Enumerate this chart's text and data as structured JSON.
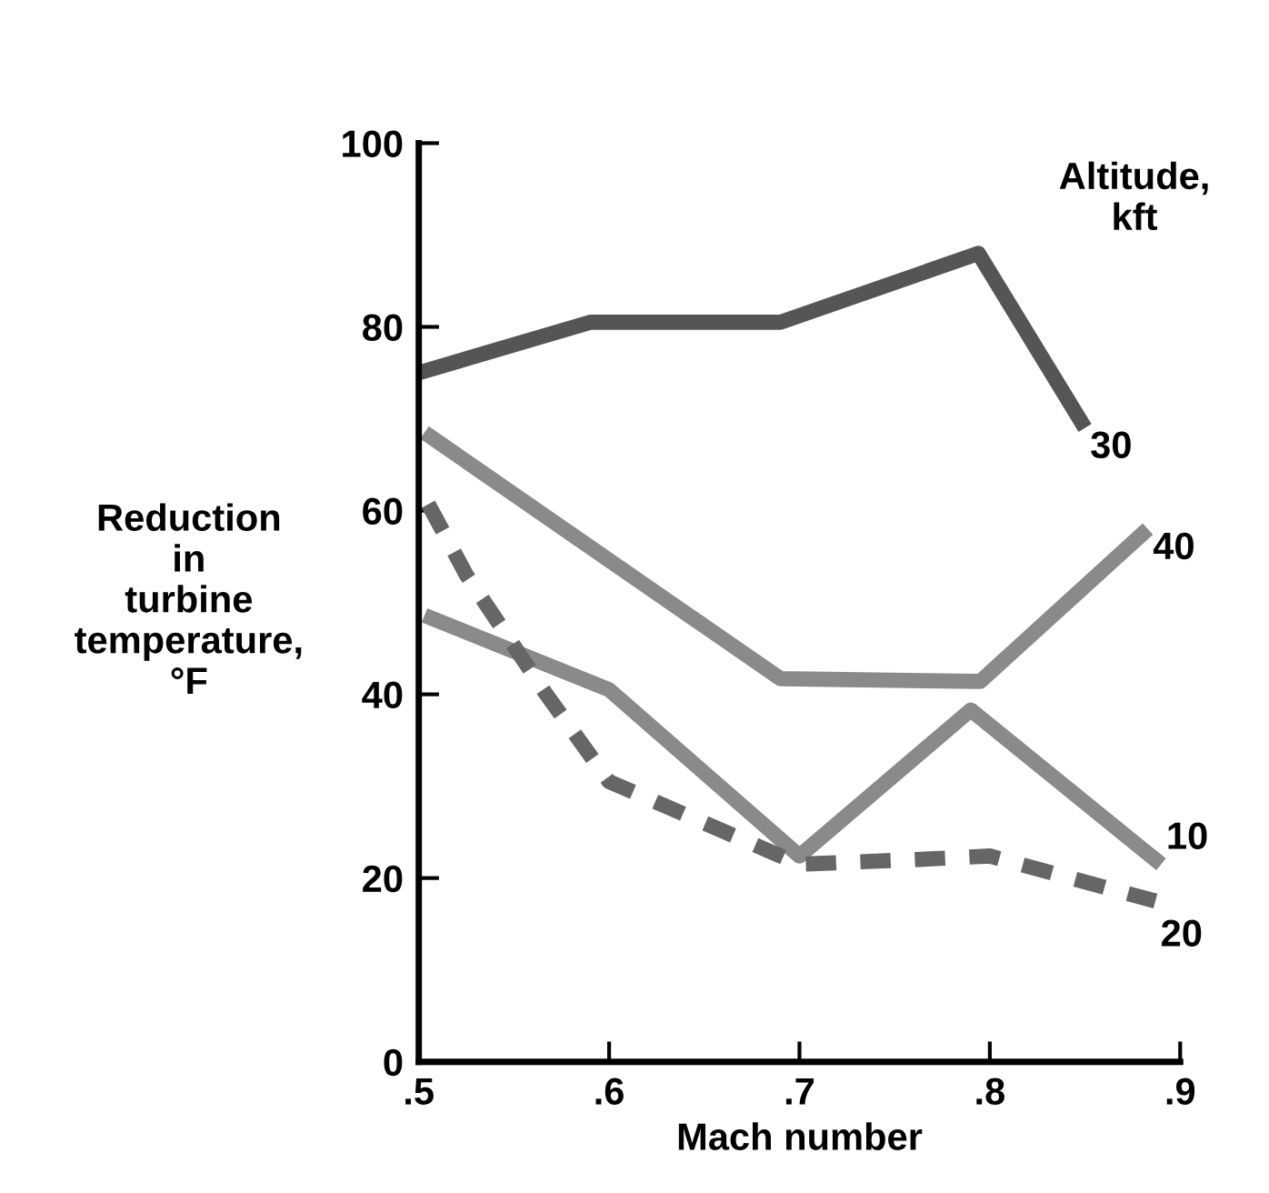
{
  "chart_data": {
    "type": "line",
    "xlabel": "Mach number",
    "ylabel": "Reduction\nin\nturbine\ntemperature,\n°F",
    "legend_title": "Altitude,\nkft",
    "xlim": [
      0.5,
      0.9
    ],
    "ylim": [
      0,
      100
    ],
    "xticks": [
      {
        "value": 0.5,
        "label": ".5"
      },
      {
        "value": 0.6,
        "label": ".6"
      },
      {
        "value": 0.7,
        "label": ".7"
      },
      {
        "value": 0.8,
        "label": ".8"
      },
      {
        "value": 0.9,
        "label": ".9"
      }
    ],
    "yticks": [
      0,
      20,
      40,
      60,
      80,
      100
    ],
    "grid": false,
    "legend": false,
    "marker": "none",
    "series": [
      {
        "name": "30",
        "color": "#555555",
        "line_style": "solid",
        "x": [
          0.5,
          0.59,
          0.69,
          0.794,
          0.85
        ],
        "values": [
          75,
          80.5,
          80.5,
          88,
          69
        ]
      },
      {
        "name": "40",
        "color": "#8a8a8a",
        "line_style": "solid",
        "x": [
          0.503,
          0.69,
          0.795,
          0.883
        ],
        "values": [
          68.5,
          41.7,
          41.4,
          58
        ]
      },
      {
        "name": "10",
        "color": "#8a8a8a",
        "line_style": "solid",
        "x": [
          0.503,
          0.6,
          0.7,
          0.79,
          0.89
        ],
        "values": [
          48.6,
          40.5,
          22.4,
          38.3,
          21.5
        ]
      },
      {
        "name": "20",
        "color": "#666666",
        "line_style": "dashed",
        "x": [
          0.505,
          0.525,
          0.567,
          0.6,
          0.7,
          0.76,
          0.8,
          0.887
        ],
        "values": [
          60.7,
          53,
          40,
          30.5,
          21.5,
          22,
          22.4,
          17.5
        ]
      }
    ]
  }
}
